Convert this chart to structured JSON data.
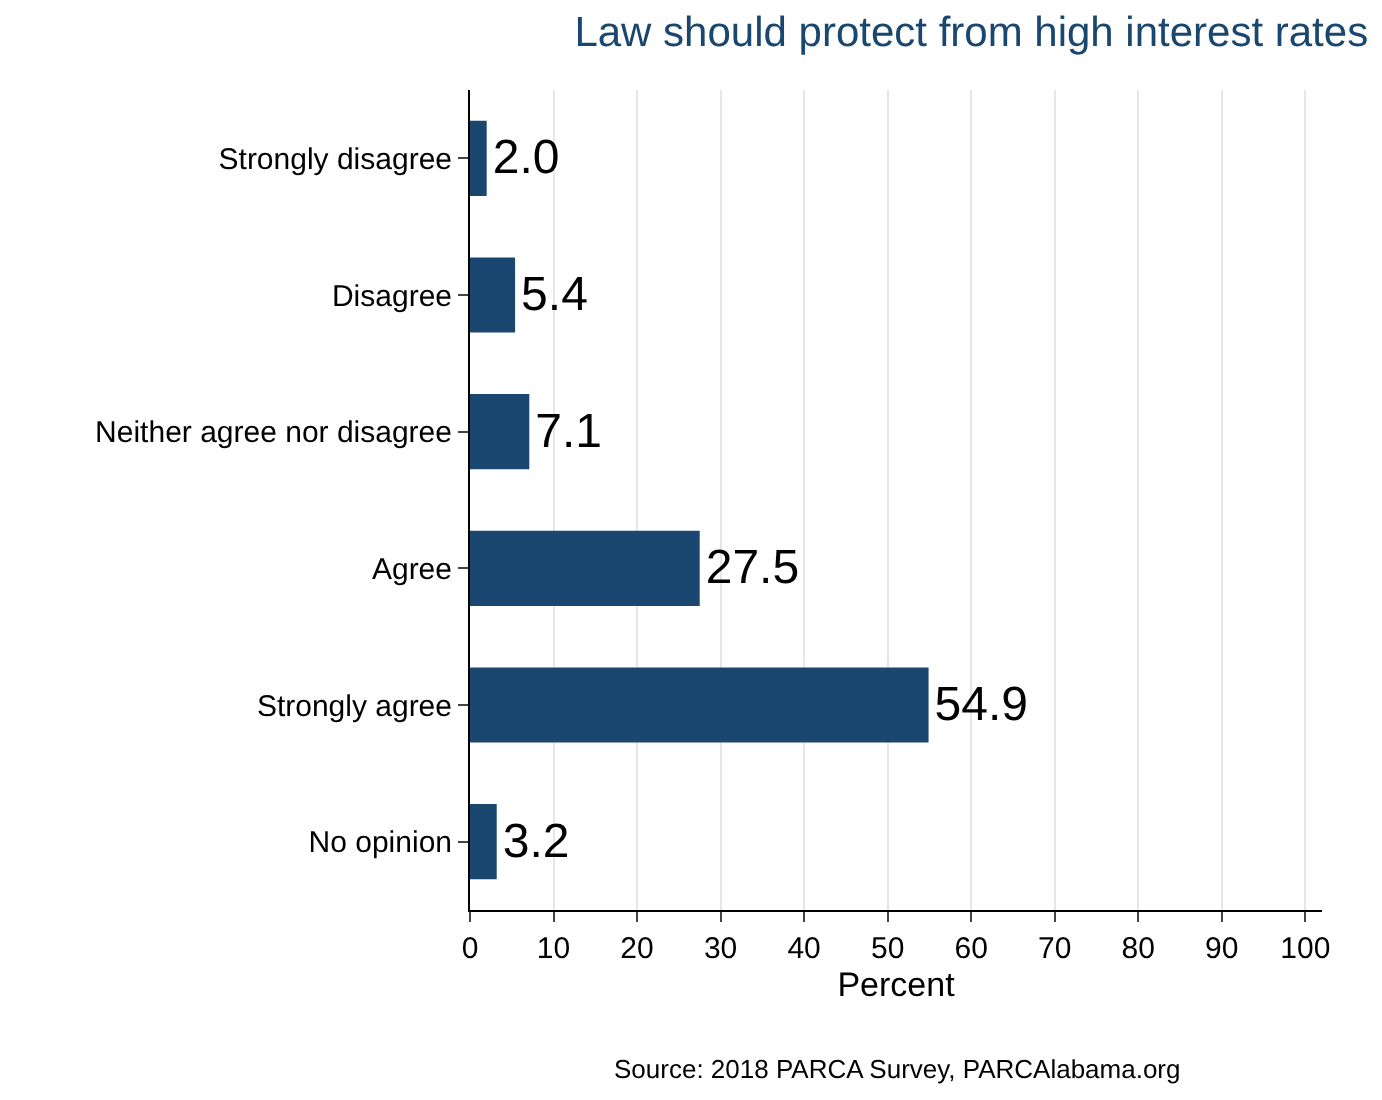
{
  "chart_data": {
    "type": "bar",
    "orientation": "horizontal",
    "title": "Law should protect from high interest rates",
    "xlabel": "Percent",
    "categories": [
      "Strongly disagree",
      "Disagree",
      "Neither agree nor disagree",
      "Agree",
      "Strongly agree",
      "No opinion"
    ],
    "values": [
      2.0,
      5.4,
      7.1,
      27.5,
      54.9,
      3.2
    ],
    "value_labels": [
      "2.0",
      "5.4",
      "7.1",
      "27.5",
      "54.9",
      "3.2"
    ],
    "color": "#1a476f",
    "xlim": [
      0,
      102
    ],
    "xticks": [
      0,
      10,
      20,
      30,
      40,
      50,
      60,
      70,
      80,
      90,
      100
    ],
    "grid": "x",
    "legend": false,
    "annotations": [
      "Source: 2018 PARCA Survey, PARCAlabama.org"
    ]
  }
}
